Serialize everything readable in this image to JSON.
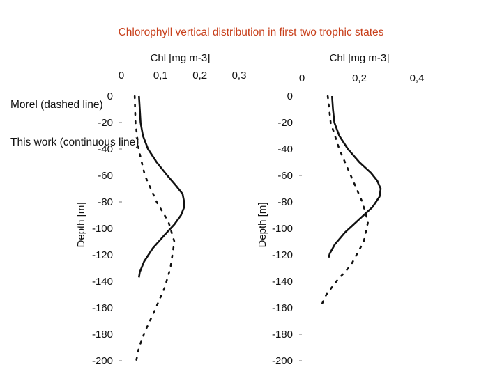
{
  "title": "Chlorophyll vertical distribution in first two trophic states",
  "legend": {
    "morel": "Morel (dashed line)",
    "this_work": "This work (continuous line)"
  },
  "chart_data": [
    {
      "type": "line",
      "xlabel": "Chl [mg m-3]",
      "ylabel": "Depth [m]",
      "xlim": [
        0,
        0.3
      ],
      "ylim": [
        0,
        -200
      ],
      "x_ticks": [
        "0",
        "0,1",
        "0,2",
        "0,3"
      ],
      "x_tick_values": [
        0,
        0.1,
        0.2,
        0.3
      ],
      "y_ticks": [
        "0",
        "-20",
        "-40",
        "-60",
        "-80",
        "-100",
        "-120",
        "-140",
        "-160",
        "-180",
        "-200"
      ],
      "y_tick_values": [
        0,
        -20,
        -40,
        -60,
        -80,
        -100,
        -120,
        -140,
        -160,
        -180,
        -200
      ],
      "series": [
        {
          "name": "This work",
          "style": "continuous",
          "color": "#111111",
          "points": [
            [
              0.045,
              0
            ],
            [
              0.047,
              -10
            ],
            [
              0.049,
              -20
            ],
            [
              0.055,
              -30
            ],
            [
              0.068,
              -40
            ],
            [
              0.09,
              -50
            ],
            [
              0.117,
              -60
            ],
            [
              0.14,
              -68
            ],
            [
              0.156,
              -74
            ],
            [
              0.16,
              -80
            ],
            [
              0.16,
              -84
            ],
            [
              0.152,
              -90
            ],
            [
              0.135,
              -97
            ],
            [
              0.11,
              -105
            ],
            [
              0.08,
              -115
            ],
            [
              0.058,
              -125
            ],
            [
              0.047,
              -133
            ],
            [
              0.045,
              -137
            ]
          ]
        },
        {
          "name": "Morel",
          "style": "dashed",
          "color": "#111111",
          "points": [
            [
              0.034,
              0
            ],
            [
              0.036,
              -20
            ],
            [
              0.044,
              -40
            ],
            [
              0.06,
              -60
            ],
            [
              0.09,
              -80
            ],
            [
              0.12,
              -95
            ],
            [
              0.135,
              -110
            ],
            [
              0.125,
              -130
            ],
            [
              0.11,
              -145
            ],
            [
              0.085,
              -162
            ],
            [
              0.06,
              -178
            ],
            [
              0.045,
              -190
            ],
            [
              0.038,
              -200
            ]
          ]
        }
      ]
    },
    {
      "type": "line",
      "xlabel": "Chl [mg m-3]",
      "ylabel": "Depth [m]",
      "xlim": [
        0,
        0.4
      ],
      "ylim": [
        0,
        -200
      ],
      "x_ticks": [
        "0",
        "0,2",
        "0,4"
      ],
      "x_tick_values": [
        0,
        0.2,
        0.4
      ],
      "y_ticks": [
        "0",
        "-20",
        "-40",
        "-60",
        "-80",
        "-100",
        "-120",
        "-140",
        "-160",
        "-180",
        "-200"
      ],
      "y_tick_values": [
        0,
        -20,
        -40,
        -60,
        -80,
        -100,
        -120,
        -140,
        -160,
        -180,
        -200
      ],
      "series": [
        {
          "name": "This work",
          "style": "continuous",
          "color": "#111111",
          "points": [
            [
              0.105,
              0
            ],
            [
              0.108,
              -10
            ],
            [
              0.113,
              -20
            ],
            [
              0.13,
              -30
            ],
            [
              0.16,
              -40
            ],
            [
              0.2,
              -50
            ],
            [
              0.24,
              -58
            ],
            [
              0.262,
              -64
            ],
            [
              0.274,
              -70
            ],
            [
              0.27,
              -76
            ],
            [
              0.245,
              -84
            ],
            [
              0.2,
              -93
            ],
            [
              0.15,
              -103
            ],
            [
              0.115,
              -112
            ],
            [
              0.097,
              -119
            ],
            [
              0.093,
              -122
            ]
          ]
        },
        {
          "name": "Morel",
          "style": "dashed",
          "color": "#111111",
          "points": [
            [
              0.09,
              0
            ],
            [
              0.1,
              -20
            ],
            [
              0.13,
              -40
            ],
            [
              0.17,
              -60
            ],
            [
              0.21,
              -80
            ],
            [
              0.23,
              -95
            ],
            [
              0.215,
              -110
            ],
            [
              0.17,
              -128
            ],
            [
              0.12,
              -140
            ],
            [
              0.085,
              -150
            ],
            [
              0.07,
              -157
            ]
          ]
        }
      ]
    }
  ]
}
